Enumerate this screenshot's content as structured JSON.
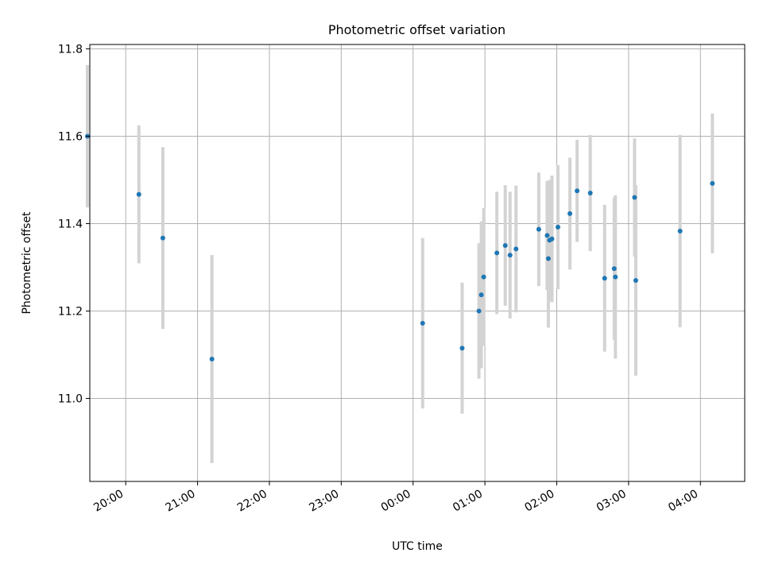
{
  "chart_data": {
    "type": "scatter",
    "title": "Photometric offset variation",
    "xlabel": "UTC time",
    "ylabel": "Photometric offset",
    "x_axis_type": "time",
    "xlim": [
      "19:30",
      "04:37"
    ],
    "ylim": [
      10.81,
      11.81
    ],
    "xticks": [
      "20:00",
      "21:00",
      "22:00",
      "23:00",
      "00:00",
      "01:00",
      "02:00",
      "03:00",
      "04:00"
    ],
    "yticks": [
      11.0,
      11.2,
      11.4,
      11.6,
      11.8
    ],
    "ytick_labels": [
      "11.0",
      "11.2",
      "11.4",
      "11.6",
      "11.8"
    ],
    "grid": true,
    "point_color": "#1f77b4",
    "errorbar_color": "#d3d3d3",
    "series": [
      {
        "points": [
          {
            "t": "19:28",
            "y": 11.6,
            "err": 0.163
          },
          {
            "t": "20:11",
            "y": 11.467,
            "err": 0.158
          },
          {
            "t": "20:31",
            "y": 11.367,
            "err": 0.208
          },
          {
            "t": "21:12",
            "y": 11.09,
            "err": 0.238
          },
          {
            "t": "00:08",
            "y": 11.172,
            "err": 0.195
          },
          {
            "t": "00:41",
            "y": 11.115,
            "err": 0.15
          },
          {
            "t": "00:55",
            "y": 11.2,
            "err": 0.155
          },
          {
            "t": "00:57",
            "y": 11.237,
            "err": 0.168
          },
          {
            "t": "00:59",
            "y": 11.278,
            "err": 0.158
          },
          {
            "t": "01:10",
            "y": 11.333,
            "err": 0.14
          },
          {
            "t": "01:17",
            "y": 11.35,
            "err": 0.138
          },
          {
            "t": "01:21",
            "y": 11.328,
            "err": 0.145
          },
          {
            "t": "01:26",
            "y": 11.342,
            "err": 0.145
          },
          {
            "t": "01:45",
            "y": 11.387,
            "err": 0.13
          },
          {
            "t": "01:52",
            "y": 11.373,
            "err": 0.125
          },
          {
            "t": "01:53",
            "y": 11.32,
            "err": 0.158
          },
          {
            "t": "01:54",
            "y": 11.362,
            "err": 0.138
          },
          {
            "t": "01:56",
            "y": 11.365,
            "err": 0.145
          },
          {
            "t": "02:01",
            "y": 11.392,
            "err": 0.142
          },
          {
            "t": "02:11",
            "y": 11.423,
            "err": 0.128
          },
          {
            "t": "02:17",
            "y": 11.475,
            "err": 0.117
          },
          {
            "t": "02:28",
            "y": 11.47,
            "err": 0.133
          },
          {
            "t": "02:40",
            "y": 11.275,
            "err": 0.168
          },
          {
            "t": "02:48",
            "y": 11.297,
            "err": 0.163
          },
          {
            "t": "02:49",
            "y": 11.278,
            "err": 0.187
          },
          {
            "t": "03:05",
            "y": 11.46,
            "err": 0.135
          },
          {
            "t": "03:06",
            "y": 11.27,
            "err": 0.218
          },
          {
            "t": "03:43",
            "y": 11.383,
            "err": 0.22
          },
          {
            "t": "04:10",
            "y": 11.492,
            "err": 0.16
          }
        ]
      }
    ]
  }
}
